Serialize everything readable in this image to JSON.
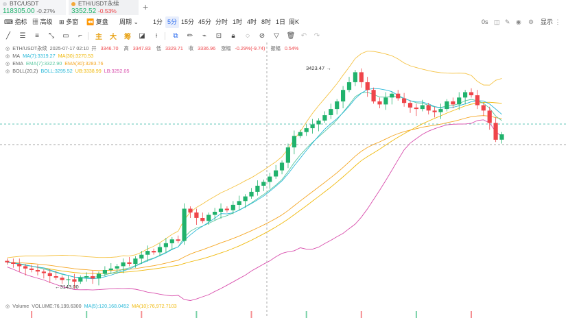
{
  "tabs": [
    {
      "name": "BTC/USDT",
      "price": "118305.00",
      "change": "-0.27%"
    },
    {
      "name": "ETH/USDT永续",
      "price": "3352.52",
      "change": "-0.53%"
    }
  ],
  "toolbar": {
    "indicators_label": "指标",
    "advanced_label": "高级",
    "multi_label": "多窗",
    "replay_label": "复盘",
    "period_label": "周期",
    "intervals": [
      "1分",
      "5分",
      "15分",
      "45分",
      "分时",
      "1时",
      "4时",
      "8时",
      "1日",
      "周K"
    ],
    "active_interval": "5分",
    "zero_s": "0s",
    "show_label": "显示"
  },
  "legend": {
    "symbol": "ETH/USDT永续",
    "datetime": "2025-07-17 02:10",
    "open_label": "开",
    "open": "3346.70",
    "high_label": "高",
    "high": "3347.83",
    "low_label": "低",
    "low": "3329.71",
    "close_label": "收",
    "close": "3336.96",
    "change_label": "涨幅",
    "change": "-0.29%(-9.74)",
    "amp_label": "振幅",
    "amp": "0.54%",
    "ma_name": "MA",
    "ma7": "MA(7):3319.27",
    "ma30": "MA(30):3270.53",
    "ema_name": "EMA",
    "ema7": "EMA(7):3322.90",
    "ema30": "EMA(30):3283.76",
    "boll_name": "BOLL(20,2)",
    "boll": "BOLL:3295.52",
    "ub": "UB:3338.99",
    "lb": "LB:3252.05"
  },
  "annotations": {
    "high_mark": "3423.47",
    "low_mark": "3143.00"
  },
  "volume": {
    "name": "Volume",
    "volume": "VOLUME:76,199.6300",
    "ma5": "MA(5):120,168.0452",
    "ma10": "MA(10):76,972.7103"
  },
  "colors": {
    "up": "#20b26c",
    "down": "#ef454a",
    "ma7": "#28b8d8",
    "ma30": "#f0b90b",
    "ema7": "#5ac8a0",
    "ema30": "#f5a623",
    "ub": "#f5c242",
    "lb": "#d84dac",
    "accent": "#2f6fef"
  },
  "chart_data": {
    "type": "candlestick",
    "interval": "5分",
    "annotated_high": 3423.47,
    "annotated_low": 3143.0,
    "last_close": 3336.96,
    "approx_closes": [
      3170,
      3168,
      3165,
      3162,
      3160,
      3158,
      3156,
      3152,
      3150,
      3147,
      3148,
      3145,
      3150,
      3152,
      3149,
      3155,
      3160,
      3162,
      3165,
      3170,
      3168,
      3175,
      3180,
      3185,
      3183,
      3190,
      3195,
      3200,
      3198,
      3240,
      3235,
      3228,
      3224,
      3232,
      3236,
      3240,
      3238,
      3245,
      3250,
      3256,
      3262,
      3270,
      3275,
      3282,
      3290,
      3300,
      3320,
      3335,
      3340,
      3345,
      3350,
      3355,
      3362,
      3370,
      3380,
      3395,
      3405,
      3418,
      3405,
      3395,
      3380,
      3376,
      3385,
      3390,
      3384,
      3378,
      3372,
      3370,
      3375,
      3368,
      3366,
      3370,
      3380,
      3376,
      3385,
      3392,
      3388,
      3375,
      3368,
      3352,
      3330,
      3337
    ]
  }
}
